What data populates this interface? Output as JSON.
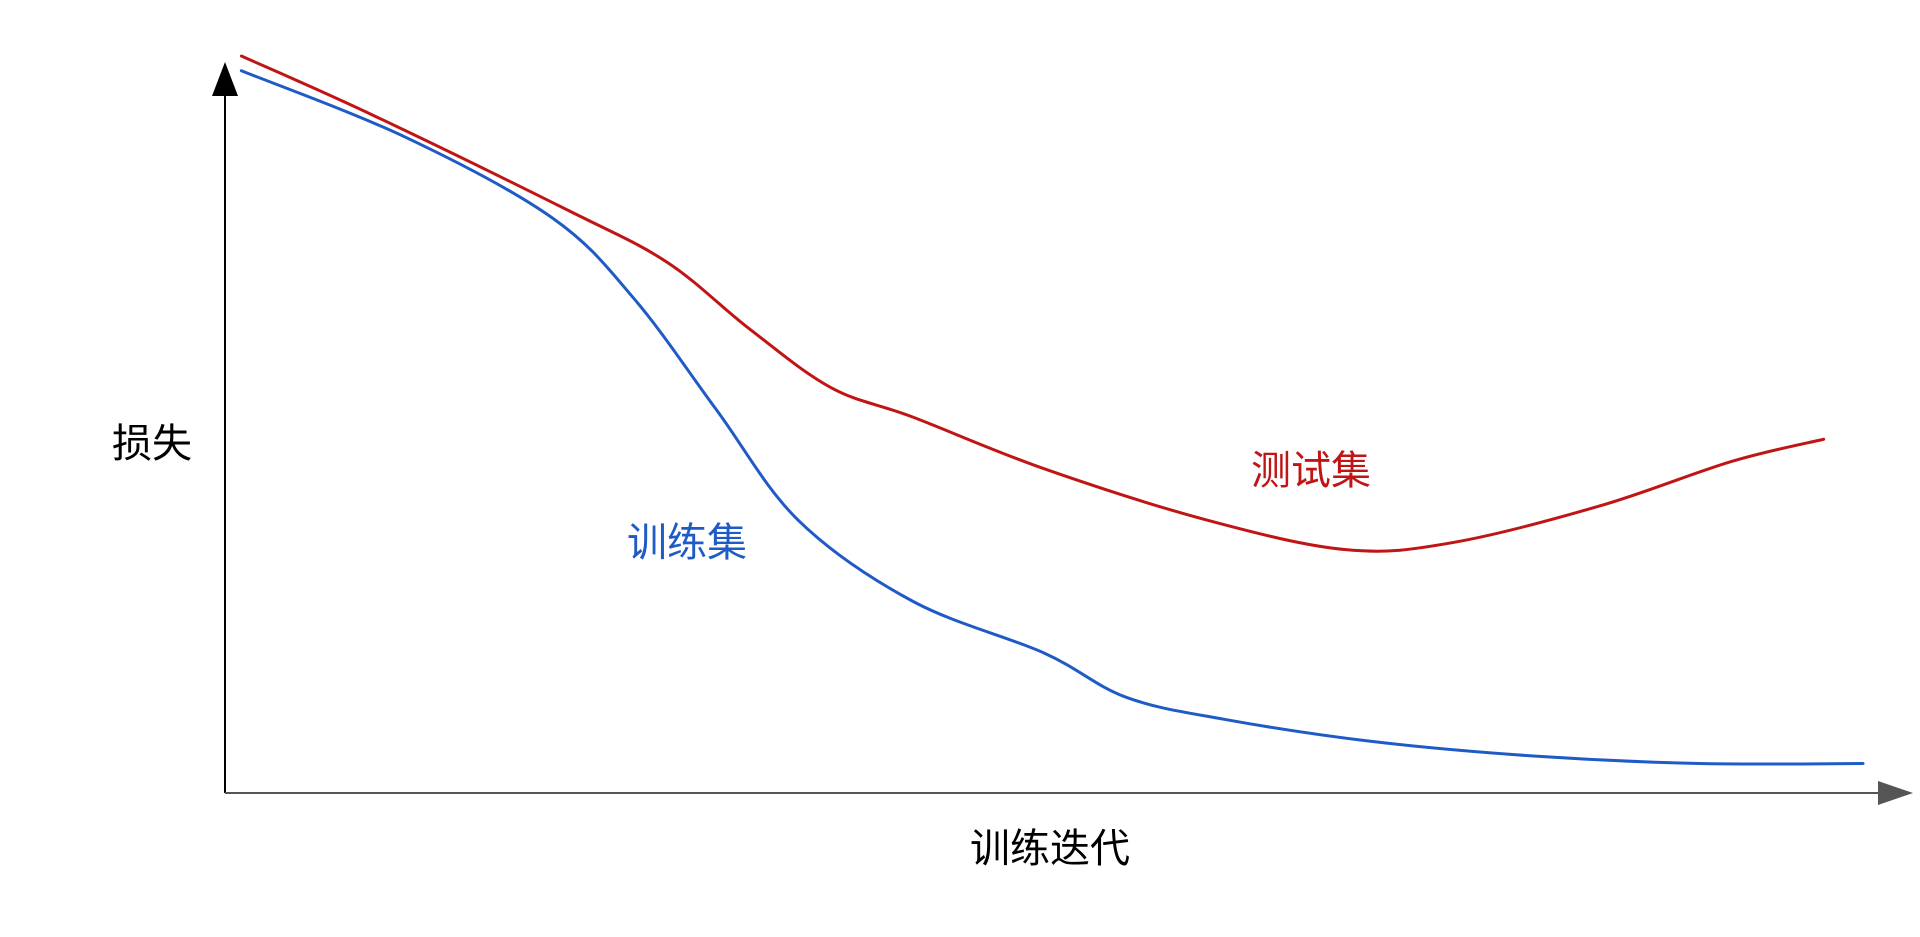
{
  "chart_data": {
    "type": "line",
    "title": "",
    "xlabel": "训练迭代",
    "ylabel": "损失",
    "xlim": [
      0,
      1
    ],
    "ylim": [
      0,
      1
    ],
    "grid": false,
    "axis_ticks": false,
    "series": [
      {
        "name": "训练集",
        "color": "#1f5bc6",
        "x": [
          0.01,
          0.11,
          0.2,
          0.25,
          0.3,
          0.35,
          0.42,
          0.5,
          0.55,
          0.61,
          0.7,
          0.8,
          0.9,
          1.0
        ],
        "y": [
          0.98,
          0.89,
          0.78,
          0.67,
          0.52,
          0.37,
          0.26,
          0.19,
          0.13,
          0.1,
          0.07,
          0.05,
          0.04,
          0.04
        ]
      },
      {
        "name": "测试集",
        "color": "#c01515",
        "x": [
          0.01,
          0.09,
          0.21,
          0.27,
          0.32,
          0.37,
          0.42,
          0.5,
          0.6,
          0.685,
          0.75,
          0.84,
          0.92,
          0.976
        ],
        "y": [
          1.0,
          0.92,
          0.79,
          0.72,
          0.63,
          0.55,
          0.51,
          0.44,
          0.37,
          0.33,
          0.34,
          0.39,
          0.45,
          0.48
        ]
      }
    ]
  }
}
